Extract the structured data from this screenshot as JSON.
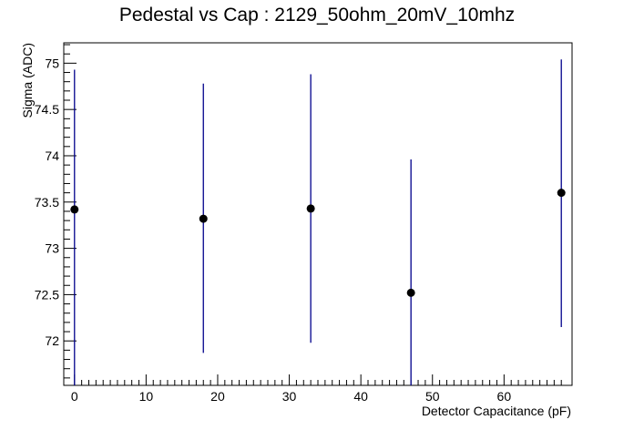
{
  "chart_data": {
    "type": "scatter",
    "title": "Pedestal vs Cap : 2129_50ohm_20mV_10mhz",
    "xlabel": "Detector Capacitance (pF)",
    "ylabel": "Sigma (ADC)",
    "xlim": [
      -1.5,
      69.5
    ],
    "ylim": [
      71.52,
      75.22
    ],
    "x_ticks": [
      0,
      10,
      20,
      30,
      40,
      50,
      60
    ],
    "x_tick_labels": [
      "0",
      "10",
      "20",
      "30",
      "40",
      "50",
      "60"
    ],
    "y_ticks": [
      72,
      72.5,
      73,
      73.5,
      74,
      74.5,
      75
    ],
    "y_tick_labels": [
      "72",
      "72.5",
      "73",
      "73.5",
      "74",
      "74.5",
      "75"
    ],
    "grid": false,
    "marker_color": "#000000",
    "error_bar_color": "#00008b",
    "series": [
      {
        "x": [
          0,
          18,
          33,
          47,
          68
        ],
        "y": [
          73.42,
          73.32,
          73.43,
          72.52,
          73.6
        ],
        "y_error_low": [
          71.52,
          71.87,
          71.98,
          71.52,
          72.15
        ],
        "y_error_high": [
          74.93,
          74.78,
          74.88,
          73.96,
          75.04
        ]
      }
    ]
  }
}
